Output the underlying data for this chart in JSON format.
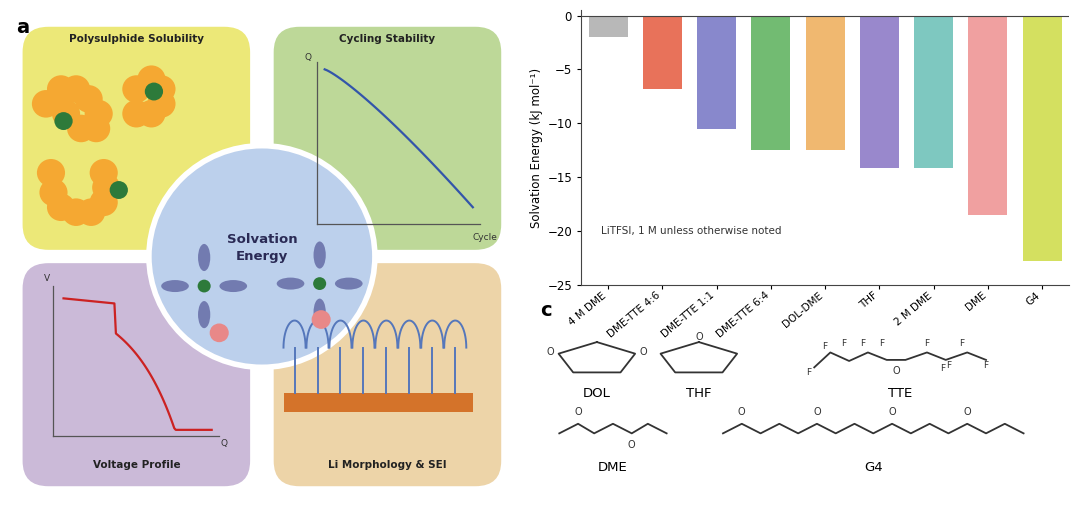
{
  "bar_categories": [
    "4 M DME",
    "DME-TTE 4:6",
    "DME-TTE 1:1",
    "DME-TTE 6:4",
    "DOL-DME",
    "THF",
    "2 M DME",
    "DME",
    "G4"
  ],
  "bar_values": [
    -2.0,
    -6.8,
    -10.5,
    -12.5,
    -12.5,
    -14.2,
    -14.2,
    -18.5,
    -22.8
  ],
  "bar_colors": [
    "#b8b8b8",
    "#e8725a",
    "#8888cc",
    "#72bb72",
    "#f0b870",
    "#9988cc",
    "#7ec8c0",
    "#f0a0a0",
    "#d4e060"
  ],
  "ylabel": "Solvation Energy (kJ mol⁻¹)",
  "ylim": [
    -25,
    0.5
  ],
  "yticks": [
    0,
    -5,
    -10,
    -15,
    -20,
    -25
  ],
  "annotation": "LiTFSI, 1 M unless otherwise noted",
  "panel_b_bg": "#ffffff",
  "panel_c_bg": "#dae8f5",
  "fig_bg": "#ffffff",
  "box_polysulphide_bg": "#ece878",
  "box_cycling_bg": "#bdd898",
  "box_voltage_bg": "#cbbad8",
  "box_limorphology_bg": "#edd4a8",
  "circle_bg": "#bcd0ec",
  "orange_sphere": "#f5a832",
  "dark_green_dot": "#2d7a3a",
  "petal_color": "#6a72aa",
  "pink_dot": "#e88888",
  "dendrite_blue": "#5577bb",
  "dendrite_base": "#d4732a",
  "voltage_curve_color": "#cc2222",
  "cycling_curve_color": "#3355aa",
  "chem_line_color": "#333333",
  "axis_color": "#555555"
}
